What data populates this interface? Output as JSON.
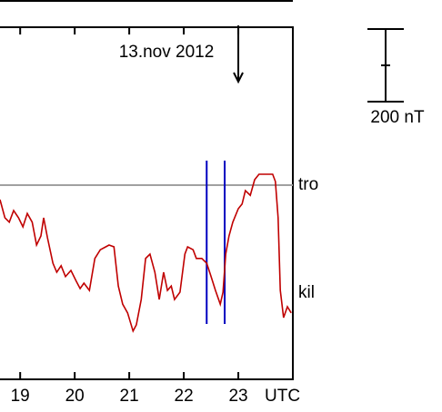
{
  "chart_data": {
    "type": "line",
    "annotation": "13.nov 2012",
    "annotation_x": 23,
    "x_unit_label": "UTC",
    "xlim": [
      18.63,
      24
    ],
    "ylim": [
      -535,
      435
    ],
    "xticks": [
      19,
      20,
      21,
      22,
      23
    ],
    "reference": {
      "name": "tro",
      "value": 0,
      "color": "#a0a0a0"
    },
    "events": {
      "color": "#0000c0",
      "x": [
        22.42,
        22.75
      ]
    },
    "scale_bar": {
      "value": 200,
      "label": "200 nT"
    },
    "series": [
      {
        "name": "kil",
        "color": "#c00000",
        "x": [
          18.63,
          18.72,
          18.8,
          18.88,
          18.97,
          19.05,
          19.13,
          19.22,
          19.3,
          19.38,
          19.43,
          19.5,
          19.6,
          19.67,
          19.75,
          19.83,
          19.93,
          20.03,
          20.1,
          20.17,
          20.27,
          20.37,
          20.47,
          20.57,
          20.63,
          20.72,
          20.8,
          20.88,
          20.97,
          21.07,
          21.13,
          21.22,
          21.3,
          21.38,
          21.47,
          21.55,
          21.63,
          21.7,
          21.77,
          21.83,
          21.93,
          22.02,
          22.07,
          22.17,
          22.23,
          22.33,
          22.42,
          22.5,
          22.58,
          22.67,
          22.72,
          22.77,
          22.83,
          22.9,
          23.0,
          23.07,
          23.13,
          23.22,
          23.3,
          23.38,
          23.5,
          23.63,
          23.68,
          23.73,
          23.77,
          23.83,
          23.9,
          23.97
        ],
        "values": [
          -40,
          -90,
          -102,
          -70,
          -90,
          -115,
          -78,
          -102,
          -165,
          -140,
          -90,
          -145,
          -215,
          -240,
          -222,
          -252,
          -235,
          -265,
          -285,
          -270,
          -290,
          -202,
          -178,
          -170,
          -165,
          -170,
          -278,
          -328,
          -352,
          -402,
          -385,
          -315,
          -202,
          -190,
          -240,
          -315,
          -240,
          -290,
          -278,
          -315,
          -295,
          -190,
          -170,
          -178,
          -202,
          -202,
          -215,
          -252,
          -290,
          -328,
          -295,
          -190,
          -140,
          -102,
          -65,
          -52,
          -15,
          -28,
          15,
          30,
          30,
          30,
          10,
          -90,
          -290,
          -365,
          -335,
          -352
        ]
      }
    ]
  }
}
